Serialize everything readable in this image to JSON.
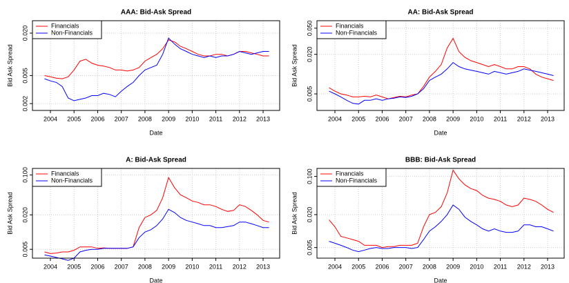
{
  "chart_data": [
    {
      "type": "line",
      "title": "AAA: Bid-Ask Spread",
      "x_label": "Date",
      "y_label": "Bid Ask Spread",
      "log_y": true,
      "grid": true,
      "legend": "top-left",
      "x": [
        2003.75,
        2004,
        2004.25,
        2004.5,
        2004.75,
        2005,
        2005.25,
        2005.5,
        2005.75,
        2006,
        2006.25,
        2006.5,
        2006.75,
        2007,
        2007.25,
        2007.5,
        2007.75,
        2008,
        2008.25,
        2008.5,
        2008.75,
        2009,
        2009.25,
        2009.5,
        2009.75,
        2010,
        2010.25,
        2010.5,
        2010.75,
        2011,
        2011.25,
        2011.5,
        2011.75,
        2012,
        2012.25,
        2012.5,
        2012.75,
        2013,
        2013.25
      ],
      "xlim": [
        2003.24,
        2013.7
      ],
      "xticks": [
        2004,
        2005,
        2006,
        2007,
        2008,
        2009,
        2010,
        2011,
        2012,
        2013
      ],
      "ylim": [
        0.0016,
        0.03
      ],
      "yticks": [
        0.002,
        0.005,
        {
          "value": 0.02,
          "label": "0.020"
        }
      ],
      "series": [
        {
          "name": "Financials",
          "color": "#ff0000",
          "values": [
            0.005,
            0.0048,
            0.0046,
            0.0045,
            0.0048,
            0.006,
            0.008,
            0.0085,
            0.0075,
            0.007,
            0.0068,
            0.0065,
            0.006,
            0.006,
            0.0058,
            0.006,
            0.0065,
            0.008,
            0.009,
            0.01,
            0.012,
            0.016,
            0.015,
            0.013,
            0.012,
            0.011,
            0.01,
            0.0095,
            0.0095,
            0.01,
            0.01,
            0.0095,
            0.01,
            0.011,
            0.011,
            0.0105,
            0.01,
            0.0095,
            0.0095
          ]
        },
        {
          "name": "Non-Financials",
          "color": "#0000ff",
          "values": [
            0.0045,
            0.0042,
            0.004,
            0.0035,
            0.0024,
            0.0022,
            0.0023,
            0.0024,
            0.0026,
            0.0026,
            0.0028,
            0.0027,
            0.0025,
            0.003,
            0.0035,
            0.004,
            0.005,
            0.006,
            0.0065,
            0.007,
            0.01,
            0.017,
            0.014,
            0.012,
            0.011,
            0.01,
            0.0095,
            0.009,
            0.0095,
            0.009,
            0.0095,
            0.0095,
            0.01,
            0.011,
            0.0105,
            0.01,
            0.0105,
            0.011,
            0.011
          ]
        }
      ]
    },
    {
      "type": "line",
      "title": "AA: Bid-Ask Spread",
      "x_label": "Date",
      "y_label": "Bid Ask Spread",
      "log_y": true,
      "grid": true,
      "legend": "top-left",
      "x": [
        2003.75,
        2004,
        2004.25,
        2004.5,
        2004.75,
        2005,
        2005.25,
        2005.5,
        2005.75,
        2006,
        2006.25,
        2006.5,
        2006.75,
        2007,
        2007.25,
        2007.5,
        2007.75,
        2008,
        2008.25,
        2008.5,
        2008.75,
        2009,
        2009.25,
        2009.5,
        2009.75,
        2010,
        2010.25,
        2010.5,
        2010.75,
        2011,
        2011.25,
        2011.5,
        2011.75,
        2012,
        2012.25,
        2012.5,
        2012.75,
        2013,
        2013.25
      ],
      "xlim": [
        2003.24,
        2013.7
      ],
      "xticks": [
        2004,
        2005,
        2006,
        2007,
        2008,
        2009,
        2010,
        2011,
        2012,
        2013
      ],
      "ylim": [
        0.0028,
        0.065
      ],
      "yticks": [
        0.005,
        {
          "value": 0.02,
          "label": "0.020"
        },
        {
          "value": 0.05,
          "label": "0.050"
        }
      ],
      "series": [
        {
          "name": "Financials",
          "color": "#ff0000",
          "values": [
            0.0062,
            0.0055,
            0.005,
            0.0048,
            0.0045,
            0.0045,
            0.0046,
            0.0045,
            0.0048,
            0.0045,
            0.0042,
            0.0044,
            0.0046,
            0.0045,
            0.0048,
            0.005,
            0.0065,
            0.009,
            0.011,
            0.014,
            0.025,
            0.035,
            0.022,
            0.018,
            0.016,
            0.015,
            0.014,
            0.013,
            0.014,
            0.013,
            0.012,
            0.012,
            0.013,
            0.013,
            0.012,
            0.01,
            0.009,
            0.0085,
            0.008
          ]
        },
        {
          "name": "Non-Financials",
          "color": "#0000ff",
          "values": [
            0.0055,
            0.005,
            0.0045,
            0.004,
            0.0036,
            0.0035,
            0.004,
            0.004,
            0.0042,
            0.004,
            0.0042,
            0.0043,
            0.0045,
            0.0044,
            0.0046,
            0.005,
            0.006,
            0.008,
            0.009,
            0.01,
            0.012,
            0.015,
            0.013,
            0.012,
            0.0115,
            0.011,
            0.0105,
            0.01,
            0.011,
            0.0105,
            0.01,
            0.0105,
            0.011,
            0.012,
            0.0115,
            0.011,
            0.0105,
            0.01,
            0.0095
          ]
        }
      ]
    },
    {
      "type": "line",
      "title": "A: Bid-Ask Spread",
      "x_label": "Date",
      "y_label": "Bid Ask Spread",
      "log_y": true,
      "grid": true,
      "legend": "top-left",
      "x": [
        2003.75,
        2004,
        2004.25,
        2004.5,
        2004.75,
        2005,
        2005.25,
        2005.5,
        2005.75,
        2006,
        2006.25,
        2006.5,
        2006.75,
        2007,
        2007.25,
        2007.5,
        2007.75,
        2008,
        2008.25,
        2008.5,
        2008.75,
        2009,
        2009.25,
        2009.5,
        2009.75,
        2010,
        2010.25,
        2010.5,
        2010.75,
        2011,
        2011.25,
        2011.5,
        2011.75,
        2012,
        2012.25,
        2012.5,
        2012.75,
        2013,
        2013.25
      ],
      "xlim": [
        2003.24,
        2013.7
      ],
      "xticks": [
        2004,
        2005,
        2006,
        2007,
        2008,
        2009,
        2010,
        2011,
        2012,
        2013
      ],
      "ylim": [
        0.0035,
        0.13
      ],
      "yticks": [
        0.005,
        {
          "value": 0.02,
          "label": "0.020"
        },
        {
          "value": 0.1,
          "label": "0.100"
        }
      ],
      "series": [
        {
          "name": "Financials",
          "color": "#ff0000",
          "values": [
            0.0045,
            0.0042,
            0.0043,
            0.0045,
            0.0045,
            0.0048,
            0.0055,
            0.0055,
            0.0055,
            0.0052,
            0.0053,
            0.0052,
            0.0052,
            0.0052,
            0.0052,
            0.0055,
            0.012,
            0.018,
            0.02,
            0.024,
            0.04,
            0.09,
            0.06,
            0.045,
            0.04,
            0.035,
            0.033,
            0.03,
            0.03,
            0.028,
            0.025,
            0.023,
            0.024,
            0.03,
            0.028,
            0.024,
            0.02,
            0.016,
            0.015
          ]
        },
        {
          "name": "Non-Financials",
          "color": "#0000ff",
          "values": [
            0.004,
            0.0038,
            0.0036,
            0.0034,
            0.0032,
            0.0035,
            0.0045,
            0.0048,
            0.005,
            0.005,
            0.0052,
            0.0052,
            0.0052,
            0.0052,
            0.0052,
            0.0055,
            0.008,
            0.01,
            0.011,
            0.013,
            0.017,
            0.025,
            0.022,
            0.018,
            0.016,
            0.015,
            0.014,
            0.013,
            0.013,
            0.012,
            0.012,
            0.0125,
            0.013,
            0.015,
            0.015,
            0.014,
            0.013,
            0.012,
            0.012
          ]
        }
      ]
    },
    {
      "type": "line",
      "title": "BBB: Bid-Ask Spread",
      "x_label": "Date",
      "y_label": "Bid Ask Spread",
      "log_y": true,
      "grid": true,
      "legend": "top-left",
      "x": [
        2003.75,
        2004,
        2004.25,
        2004.5,
        2004.75,
        2005,
        2005.25,
        2005.5,
        2005.75,
        2006,
        2006.25,
        2006.5,
        2006.75,
        2007,
        2007.25,
        2007.5,
        2007.75,
        2008,
        2008.25,
        2008.5,
        2008.75,
        2009,
        2009.25,
        2009.5,
        2009.75,
        2010,
        2010.25,
        2010.5,
        2010.75,
        2011,
        2011.25,
        2011.5,
        2011.75,
        2012,
        2012.25,
        2012.5,
        2012.75,
        2013,
        2013.25
      ],
      "xlim": [
        2003.24,
        2013.7
      ],
      "xticks": [
        2004,
        2005,
        2006,
        2007,
        2008,
        2009,
        2010,
        2011,
        2012,
        2013
      ],
      "ylim": [
        0.0032,
        0.14
      ],
      "yticks": [
        0.005,
        {
          "value": 0.02,
          "label": "0.020"
        },
        {
          "value": 0.1,
          "label": "0.100"
        }
      ],
      "series": [
        {
          "name": "Financials",
          "color": "#ff0000",
          "values": [
            0.016,
            0.012,
            0.008,
            0.0075,
            0.007,
            0.0065,
            0.0055,
            0.0055,
            0.0055,
            0.005,
            0.0052,
            0.0052,
            0.0055,
            0.0055,
            0.0055,
            0.006,
            0.012,
            0.02,
            0.022,
            0.028,
            0.05,
            0.13,
            0.09,
            0.07,
            0.06,
            0.055,
            0.045,
            0.04,
            0.038,
            0.035,
            0.03,
            0.028,
            0.03,
            0.04,
            0.038,
            0.035,
            0.03,
            0.025,
            0.022
          ]
        },
        {
          "name": "Non-Financials",
          "color": "#0000ff",
          "values": [
            0.0065,
            0.006,
            0.0055,
            0.005,
            0.0045,
            0.0042,
            0.0045,
            0.0048,
            0.005,
            0.0048,
            0.0048,
            0.005,
            0.005,
            0.005,
            0.0048,
            0.005,
            0.007,
            0.01,
            0.012,
            0.015,
            0.02,
            0.03,
            0.025,
            0.018,
            0.015,
            0.013,
            0.011,
            0.01,
            0.011,
            0.01,
            0.0095,
            0.0095,
            0.01,
            0.013,
            0.013,
            0.012,
            0.012,
            0.011,
            0.01
          ]
        }
      ]
    }
  ]
}
